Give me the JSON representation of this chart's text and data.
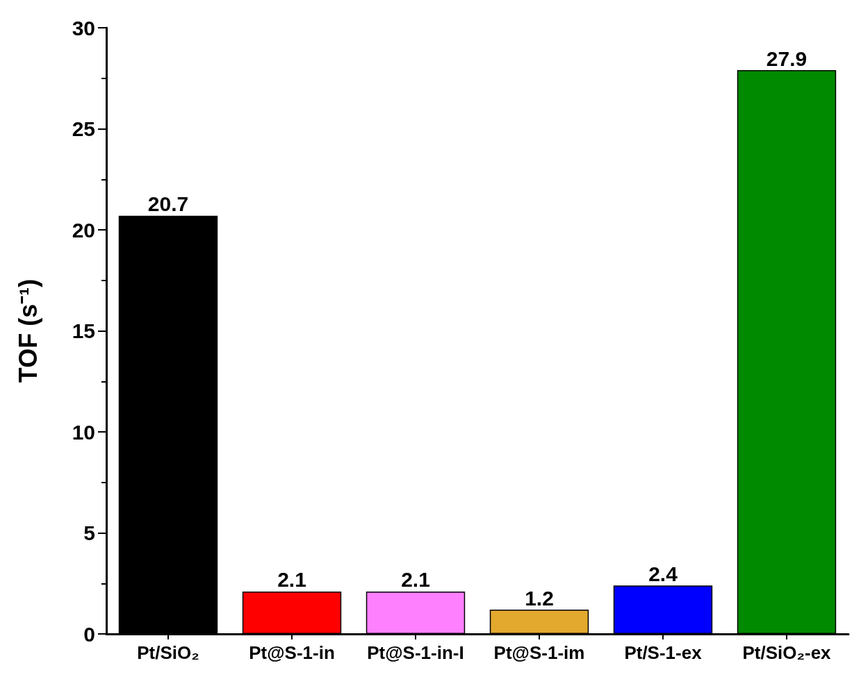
{
  "chart_data": {
    "type": "bar",
    "ylabel": "TOF (s⁻¹)",
    "categories": [
      "Pt/SiO₂",
      "Pt@S-1-in",
      "Pt@S-1-in-I",
      "Pt@S-1-im",
      "Pt/S-1-ex",
      "Pt/SiO₂-ex"
    ],
    "values": [
      20.7,
      2.1,
      2.1,
      1.2,
      2.4,
      27.9
    ],
    "colors": [
      "#000000",
      "#ff0000",
      "#ff80ff",
      "#e3a92e",
      "#0000ff",
      "#008a00"
    ],
    "ylim": [
      0,
      30
    ],
    "yticks": [
      0,
      5,
      10,
      15,
      20,
      25,
      30
    ],
    "grid": false,
    "data_labels": true
  }
}
